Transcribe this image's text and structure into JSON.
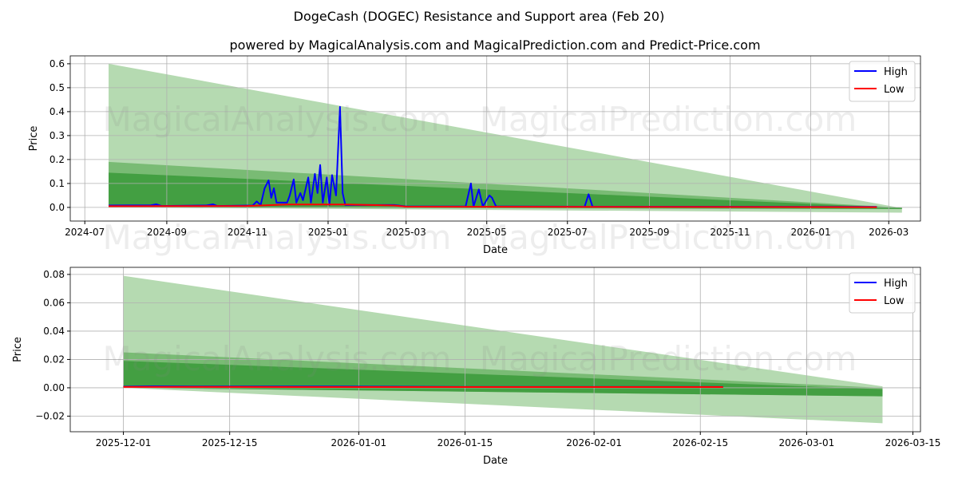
{
  "title": "DogeCash (DOGEC) Resistance and Support area (Feb 20)",
  "subtitle": "powered by MagicalAnalysis.com and MagicalPrediction.com and Predict-Price.com",
  "watermarks": [
    "MagicalAnalysis.com",
    "MagicalPrediction.com"
  ],
  "colors": {
    "high": "#0000ff",
    "low": "#ff0000",
    "band_light": "#b5dab1",
    "band_mid": "#66b060",
    "band_dark": "#3a9a3a"
  },
  "chart_data": [
    {
      "type": "line",
      "xlabel": "Date",
      "ylabel": "Price",
      "ylim": [
        -0.057,
        0.633
      ],
      "xlim": [
        "2024-06-20",
        "2026-03-25"
      ],
      "yticks": [
        0.0,
        0.1,
        0.2,
        0.3,
        0.4,
        0.5,
        0.6
      ],
      "ytick_labels": [
        "0.0",
        "0.1",
        "0.2",
        "0.3",
        "0.4",
        "0.5",
        "0.6"
      ],
      "xticks": [
        "2024-07-01",
        "2024-09-01",
        "2024-11-01",
        "2025-01-01",
        "2025-03-01",
        "2025-05-01",
        "2025-07-01",
        "2025-09-01",
        "2025-11-01",
        "2026-01-01",
        "2026-03-01"
      ],
      "xtick_labels": [
        "2024-07",
        "2024-09",
        "2024-11",
        "2025-01",
        "2025-03",
        "2025-05",
        "2025-07",
        "2025-09",
        "2025-11",
        "2026-01",
        "2026-03"
      ],
      "legend": {
        "position": "top-right",
        "entries": [
          "High",
          "Low"
        ]
      },
      "grid": true,
      "bands": [
        {
          "name": "outer",
          "start": "2024-07-19",
          "end": "2026-03-11",
          "upper": [
            0.6,
            -0.003
          ],
          "lower": [
            0.0,
            -0.022
          ]
        },
        {
          "name": "middle",
          "start": "2024-07-19",
          "end": "2026-03-11",
          "upper": [
            0.19,
            -0.001
          ],
          "lower": [
            0.0,
            -0.007
          ]
        },
        {
          "name": "inner",
          "start": "2024-07-19",
          "end": "2026-03-11",
          "upper": [
            0.145,
            -0.002
          ],
          "lower": [
            0.0,
            -0.006
          ]
        }
      ],
      "series": [
        {
          "name": "High",
          "points": [
            [
              "2024-07-19",
              0.008
            ],
            [
              "2024-08-20",
              0.009
            ],
            [
              "2024-08-24",
              0.013
            ],
            [
              "2024-08-28",
              0.006
            ],
            [
              "2024-10-01",
              0.008
            ],
            [
              "2024-10-06",
              0.013
            ],
            [
              "2024-10-09",
              0.006
            ],
            [
              "2024-11-05",
              0.008
            ],
            [
              "2024-11-08",
              0.025
            ],
            [
              "2024-11-11",
              0.01
            ],
            [
              "2024-11-14",
              0.08
            ],
            [
              "2024-11-17",
              0.113
            ],
            [
              "2024-11-19",
              0.04
            ],
            [
              "2024-11-21",
              0.08
            ],
            [
              "2024-11-23",
              0.02
            ],
            [
              "2024-12-01",
              0.02
            ],
            [
              "2024-12-03",
              0.05
            ],
            [
              "2024-12-06",
              0.117
            ],
            [
              "2024-12-08",
              0.02
            ],
            [
              "2024-12-11",
              0.06
            ],
            [
              "2024-12-13",
              0.03
            ],
            [
              "2024-12-17",
              0.125
            ],
            [
              "2024-12-19",
              0.02
            ],
            [
              "2024-12-22",
              0.14
            ],
            [
              "2024-12-24",
              0.06
            ],
            [
              "2024-12-26",
              0.177
            ],
            [
              "2024-12-28",
              0.02
            ],
            [
              "2024-12-31",
              0.125
            ],
            [
              "2025-01-02",
              0.01
            ],
            [
              "2025-01-04",
              0.135
            ],
            [
              "2025-01-07",
              0.05
            ],
            [
              "2025-01-10",
              0.42
            ],
            [
              "2025-01-12",
              0.06
            ],
            [
              "2025-01-14",
              0.01
            ],
            [
              "2025-02-20",
              0.01
            ],
            [
              "2025-03-01",
              0.004
            ],
            [
              "2025-04-15",
              0.004
            ],
            [
              "2025-04-19",
              0.1
            ],
            [
              "2025-04-21",
              0.004
            ],
            [
              "2025-04-25",
              0.075
            ],
            [
              "2025-04-28",
              0.004
            ],
            [
              "2025-05-03",
              0.05
            ],
            [
              "2025-05-05",
              0.04
            ],
            [
              "2025-05-08",
              0.004
            ],
            [
              "2025-07-14",
              0.003
            ],
            [
              "2025-07-17",
              0.055
            ],
            [
              "2025-07-20",
              0.003
            ],
            [
              "2026-02-20",
              0.002
            ]
          ]
        },
        {
          "name": "Low",
          "points": [
            [
              "2024-07-19",
              0.005
            ],
            [
              "2024-11-01",
              0.006
            ],
            [
              "2024-12-01",
              0.012
            ],
            [
              "2025-01-15",
              0.012
            ],
            [
              "2025-02-20",
              0.008
            ],
            [
              "2025-03-01",
              0.003
            ],
            [
              "2026-02-20",
              0.001
            ]
          ]
        }
      ]
    },
    {
      "type": "line",
      "xlabel": "Date",
      "ylabel": "Price",
      "ylim": [
        -0.031,
        0.085
      ],
      "xlim": [
        "2025-11-24",
        "2026-03-16"
      ],
      "yticks": [
        -0.02,
        0.0,
        0.02,
        0.04,
        0.06,
        0.08
      ],
      "ytick_labels": [
        "−0.02",
        "0.00",
        "0.02",
        "0.04",
        "0.06",
        "0.08"
      ],
      "xticks": [
        "2025-12-01",
        "2025-12-15",
        "2026-01-01",
        "2026-01-15",
        "2026-02-01",
        "2026-02-15",
        "2026-03-01",
        "2026-03-15"
      ],
      "xtick_labels": [
        "2025-12-01",
        "2025-12-15",
        "2026-01-01",
        "2026-01-15",
        "2026-02-01",
        "2026-02-15",
        "2026-03-01",
        "2026-03-15"
      ],
      "legend": {
        "position": "top-right",
        "entries": [
          "High",
          "Low"
        ]
      },
      "grid": true,
      "bands": [
        {
          "name": "outer",
          "start": "2025-12-01",
          "end": "2026-03-11",
          "upper": [
            0.079,
            0.001
          ],
          "lower": [
            0.0,
            -0.025
          ]
        },
        {
          "name": "middle",
          "start": "2025-12-01",
          "end": "2026-03-11",
          "upper": [
            0.025,
            0.0
          ],
          "lower": [
            0.0,
            -0.006
          ]
        },
        {
          "name": "inner",
          "start": "2025-12-01",
          "end": "2026-03-11",
          "upper": [
            0.019,
            -0.001
          ],
          "lower": [
            0.0,
            -0.006
          ]
        }
      ],
      "series": [
        {
          "name": "High",
          "points": [
            [
              "2025-12-01",
              0.0008
            ],
            [
              "2025-12-05",
              0.001
            ],
            [
              "2025-12-10",
              0.0009
            ],
            [
              "2025-12-29",
              0.0009
            ],
            [
              "2026-01-15",
              0.0006
            ],
            [
              "2026-02-18",
              0.0006
            ]
          ]
        },
        {
          "name": "Low",
          "points": [
            [
              "2025-12-01",
              0.0006
            ],
            [
              "2026-01-15",
              0.0005
            ],
            [
              "2026-02-18",
              0.0005
            ]
          ]
        }
      ]
    }
  ]
}
